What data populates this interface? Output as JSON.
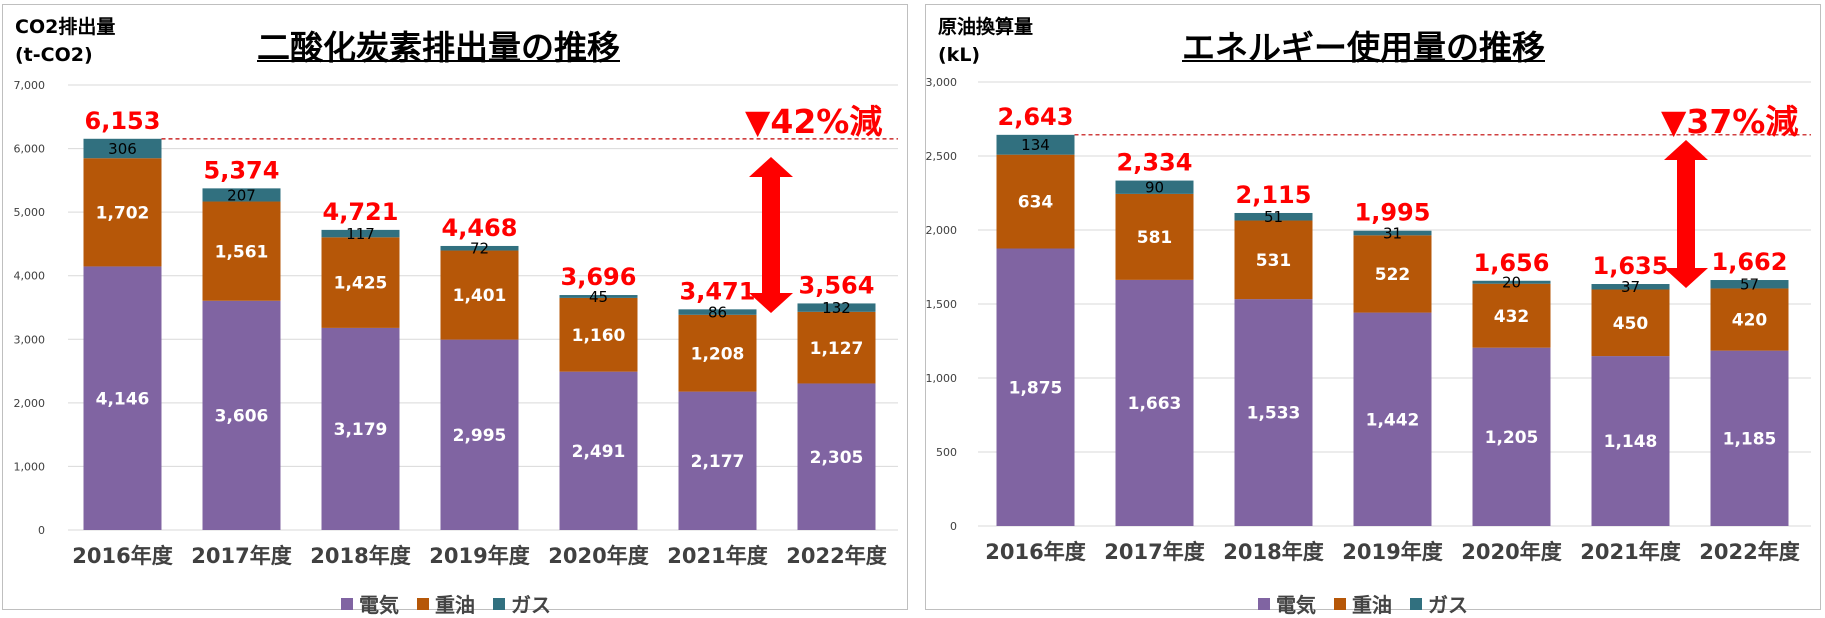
{
  "colors": {
    "electricity": "#8064a2",
    "heavy_oil": "#b65708",
    "gas": "#31707f",
    "total_label": "#ff0000",
    "arrow": "#ff0000",
    "dashed_line": "#c00000"
  },
  "chart_data": [
    {
      "type": "bar",
      "stacked": true,
      "title": "二酸化炭素排出量の推移",
      "unit_line1": "CO2排出量",
      "unit_line2": "(t-CO2)",
      "reduction_label": "▼42%減",
      "categories": [
        "2016年度",
        "2017年度",
        "2018年度",
        "2019年度",
        "2020年度",
        "2021年度",
        "2022年度"
      ],
      "series": [
        {
          "name": "電気",
          "values": [
            4146,
            3606,
            3179,
            2995,
            2491,
            2177,
            2305
          ],
          "labels": [
            "4,146",
            "3,606",
            "3,179",
            "2,995",
            "2,491",
            "2,177",
            "2,305"
          ]
        },
        {
          "name": "重油",
          "values": [
            1702,
            1561,
            1425,
            1401,
            1160,
            1208,
            1127
          ],
          "labels": [
            "1,702",
            "1,561",
            "1,425",
            "1,401",
            "1,160",
            "1,208",
            "1,127"
          ]
        },
        {
          "name": "ガス",
          "values": [
            306,
            207,
            117,
            72,
            45,
            86,
            132
          ],
          "labels": [
            "306",
            "207",
            "117",
            "72",
            "45",
            "86",
            "132"
          ]
        }
      ],
      "totals": [
        6153,
        5374,
        4721,
        4468,
        3696,
        3471,
        3564
      ],
      "total_labels": [
        "6,153",
        "5,374",
        "4,721",
        "4,468",
        "3,696",
        "3,471",
        "3,564"
      ],
      "ylim": [
        0,
        7000
      ],
      "yticks": [
        0,
        1000,
        2000,
        3000,
        4000,
        5000,
        6000,
        7000
      ],
      "ytick_labels": [
        "0",
        "1,000",
        "2,000",
        "3,000",
        "4,000",
        "5,000",
        "6,000",
        "7,000"
      ],
      "grid": true,
      "legend": [
        "電気",
        "重油",
        "ガス"
      ],
      "legend_position": "bottom"
    },
    {
      "type": "bar",
      "stacked": true,
      "title": "エネルギー使用量の推移",
      "unit_line1": "原油換算量",
      "unit_line2": "(kL)",
      "reduction_label": "▼37%減",
      "categories": [
        "2016年度",
        "2017年度",
        "2018年度",
        "2019年度",
        "2020年度",
        "2021年度",
        "2022年度"
      ],
      "series": [
        {
          "name": "電気",
          "values": [
            1875,
            1663,
            1533,
            1442,
            1205,
            1148,
            1185
          ],
          "labels": [
            "1,875",
            "1,663",
            "1,533",
            "1,442",
            "1,205",
            "1,148",
            "1,185"
          ]
        },
        {
          "name": "重油",
          "values": [
            634,
            581,
            531,
            522,
            432,
            450,
            420
          ],
          "labels": [
            "634",
            "581",
            "531",
            "522",
            "432",
            "450",
            "420"
          ]
        },
        {
          "name": "ガス",
          "values": [
            134,
            90,
            51,
            31,
            20,
            37,
            57
          ],
          "labels": [
            "134",
            "90",
            "51",
            "31",
            "20",
            "37",
            "57"
          ]
        }
      ],
      "totals": [
        2643,
        2334,
        2115,
        1995,
        1656,
        1635,
        1662
      ],
      "total_labels": [
        "2,643",
        "2,334",
        "2,115",
        "1,995",
        "1,656",
        "1,635",
        "1,662"
      ],
      "ylim": [
        0,
        3000
      ],
      "yticks": [
        0,
        500,
        1000,
        1500,
        2000,
        2500,
        3000
      ],
      "ytick_labels": [
        "0",
        "500",
        "1,000",
        "1,500",
        "2,000",
        "2,500",
        "3,000"
      ],
      "grid": true,
      "legend": [
        "電気",
        "重油",
        "ガス"
      ],
      "legend_position": "bottom"
    }
  ]
}
